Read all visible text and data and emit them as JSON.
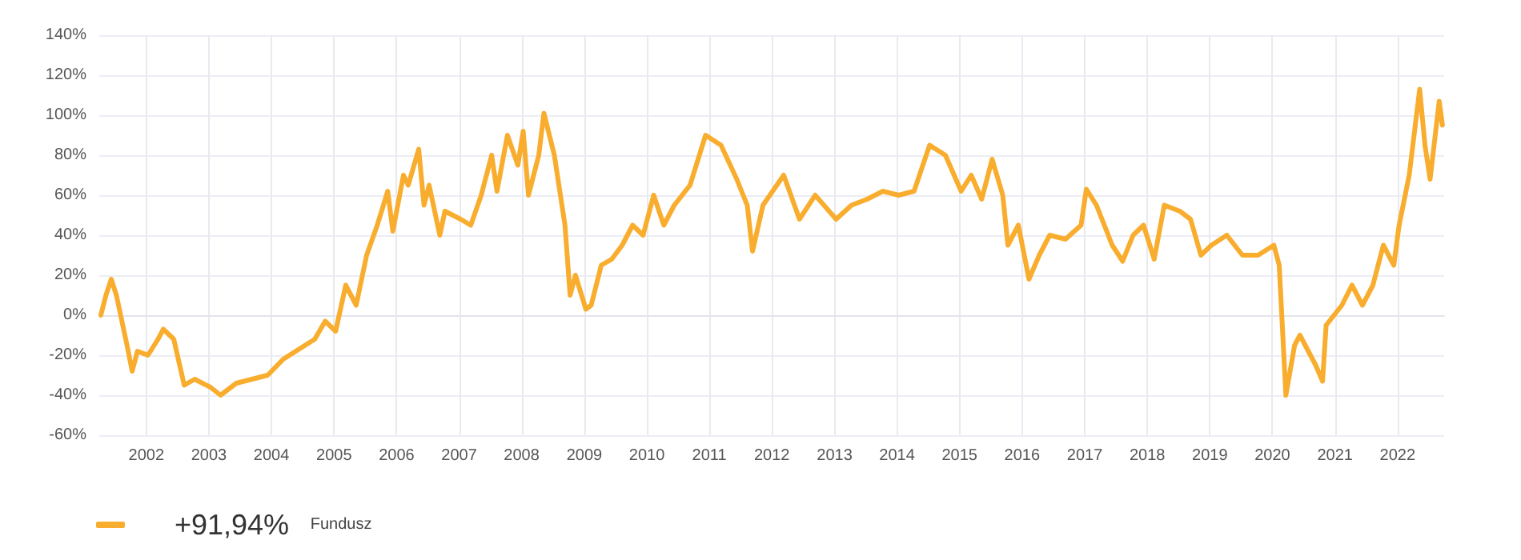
{
  "chart_data": {
    "type": "line",
    "annotations": [
      "+91,94%"
    ],
    "x": [
      "2001-04-10",
      "2001-05-10",
      "2001-06-10",
      "2001-07-10",
      "2001-09-10",
      "2001-10-10",
      "2001-11-10",
      "2002-01-10",
      "2002-03-10",
      "2002-04-10",
      "2002-06-10",
      "2002-08-10",
      "2002-10-10",
      "2003-01-10",
      "2003-03-10",
      "2003-06-10",
      "2003-09-10",
      "2003-12-10",
      "2004-03-10",
      "2004-06-10",
      "2004-09-10",
      "2004-11-10",
      "2005-01-10",
      "2005-03-10",
      "2005-05-10",
      "2005-07-10",
      "2005-09-10",
      "2005-11-10",
      "2005-12-10",
      "2006-02-10",
      "2006-03-10",
      "2006-05-10",
      "2006-06-10",
      "2006-07-10",
      "2006-09-10",
      "2006-10-10",
      "2007-01-10",
      "2007-03-10",
      "2007-05-10",
      "2007-07-10",
      "2007-08-10",
      "2007-10-10",
      "2007-12-10",
      "2008-01-10",
      "2008-02-10",
      "2008-04-10",
      "2008-05-10",
      "2008-07-10",
      "2008-09-10",
      "2008-10-10",
      "2008-11-10",
      "2009-01-10",
      "2009-02-10",
      "2009-04-10",
      "2009-06-10",
      "2009-08-10",
      "2009-10-10",
      "2009-12-10",
      "2010-02-10",
      "2010-04-10",
      "2010-06-10",
      "2010-09-10",
      "2010-12-10",
      "2011-03-10",
      "2011-06-10",
      "2011-08-10",
      "2011-09-10",
      "2011-11-10",
      "2012-03-10",
      "2012-06-10",
      "2012-09-10",
      "2013-01-10",
      "2013-04-10",
      "2013-07-10",
      "2013-10-10",
      "2014-01-10",
      "2014-04-10",
      "2014-07-10",
      "2014-10-10",
      "2015-01-10",
      "2015-03-10",
      "2015-05-10",
      "2015-07-10",
      "2015-09-10",
      "2015-10-10",
      "2015-12-10",
      "2016-02-10",
      "2016-04-10",
      "2016-06-10",
      "2016-09-10",
      "2016-12-10",
      "2017-01-10",
      "2017-03-10",
      "2017-06-10",
      "2017-08-10",
      "2017-10-10",
      "2017-12-10",
      "2018-02-10",
      "2018-04-10",
      "2018-07-10",
      "2018-09-10",
      "2018-11-10",
      "2019-01-10",
      "2019-04-10",
      "2019-07-10",
      "2019-10-10",
      "2020-01-10",
      "2020-02-10",
      "2020-03-20",
      "2020-05-10",
      "2020-06-10",
      "2020-09-10",
      "2020-10-20",
      "2020-11-10",
      "2021-02-10",
      "2021-04-10",
      "2021-06-10",
      "2021-08-10",
      "2021-10-10",
      "2021-12-10",
      "2022-01-10",
      "2022-03-10",
      "2022-05-10",
      "2022-06-10",
      "2022-07-10",
      "2022-09-01",
      "2022-09-20"
    ],
    "series": [
      {
        "name": "Fundusz",
        "color": "#f9ad2e",
        "values": [
          0,
          10,
          18,
          10,
          -15,
          -28,
          -18,
          -20,
          -12,
          -7,
          -12,
          -35,
          -32,
          -36,
          -40,
          -34,
          -32,
          -30,
          -22,
          -17,
          -12,
          -3,
          -8,
          15,
          5,
          30,
          45,
          62,
          42,
          70,
          65,
          83,
          55,
          65,
          40,
          52,
          48,
          45,
          60,
          80,
          62,
          90,
          75,
          92,
          60,
          80,
          101,
          80,
          45,
          10,
          20,
          3,
          5,
          25,
          28,
          35,
          45,
          40,
          60,
          45,
          55,
          65,
          90,
          85,
          68,
          55,
          32,
          55,
          70,
          48,
          60,
          48,
          55,
          58,
          62,
          60,
          62,
          85,
          80,
          62,
          70,
          58,
          78,
          60,
          35,
          45,
          18,
          30,
          40,
          38,
          45,
          63,
          55,
          35,
          27,
          40,
          45,
          28,
          55,
          52,
          48,
          30,
          35,
          40,
          30,
          30,
          35,
          25,
          -40,
          -15,
          -10,
          -25,
          -33,
          -5,
          5,
          15,
          5,
          15,
          35,
          25,
          45,
          70,
          113,
          85,
          68,
          107,
          95
        ]
      }
    ],
    "xlim": [
      "2001-04-01",
      "2022-09-30"
    ],
    "xticks": [
      "2002",
      "2003",
      "2004",
      "2005",
      "2006",
      "2007",
      "2008",
      "2009",
      "2010",
      "2011",
      "2012",
      "2013",
      "2014",
      "2015",
      "2016",
      "2017",
      "2018",
      "2019",
      "2020",
      "2021",
      "2022"
    ],
    "ylim": [
      -60,
      140
    ],
    "yticks": [
      {
        "value": -60,
        "label": "-60%"
      },
      {
        "value": -40,
        "label": "-40%"
      },
      {
        "value": -20,
        "label": "-20%"
      },
      {
        "value": 0,
        "label": "0%"
      },
      {
        "value": 20,
        "label": "20%"
      },
      {
        "value": 40,
        "label": "40%"
      },
      {
        "value": 60,
        "label": "60%"
      },
      {
        "value": 80,
        "label": "80%"
      },
      {
        "value": 100,
        "label": "100%"
      },
      {
        "value": 120,
        "label": "120%"
      },
      {
        "value": 140,
        "label": "140%"
      }
    ],
    "grid": true,
    "legend": "bottom left",
    "marker": "none",
    "line_style": "solid"
  }
}
